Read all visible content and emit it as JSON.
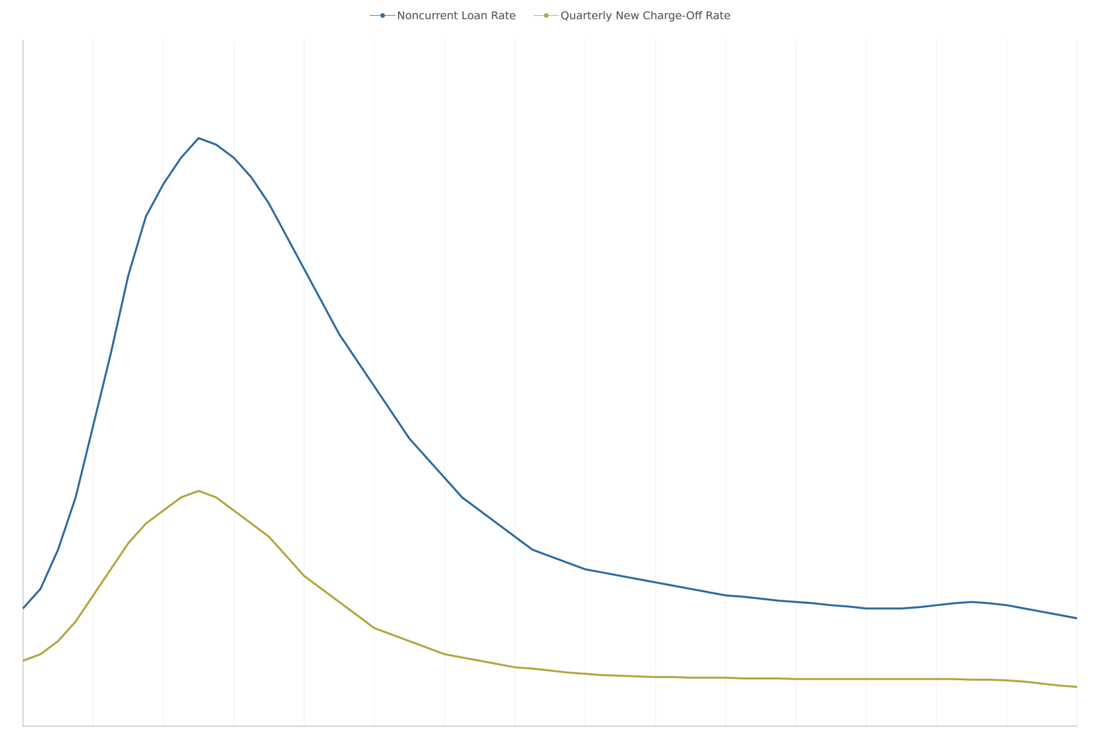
{
  "chart_data": {
    "type": "line",
    "categories": [
      null,
      null,
      null,
      null,
      null,
      null,
      null,
      null,
      null,
      null,
      null,
      null,
      null,
      null,
      null,
      null,
      null,
      null,
      null,
      null,
      null,
      null,
      null,
      null,
      null,
      null,
      null,
      null,
      null,
      null,
      null,
      null,
      null,
      null,
      null,
      null,
      null,
      null,
      null,
      null,
      null,
      null,
      null,
      null,
      null,
      null,
      null,
      null,
      null,
      null,
      null,
      null,
      null,
      null,
      null,
      null,
      null,
      null,
      null,
      null,
      null
    ],
    "series": [
      {
        "name": "Noncurrent Loan Rate",
        "color": "#2e6da4",
        "values": [
          2.3,
          2.6,
          3.2,
          4.0,
          5.1,
          6.2,
          7.4,
          8.3,
          8.8,
          9.2,
          9.5,
          9.4,
          9.2,
          8.9,
          8.5,
          8.0,
          7.5,
          7.0,
          6.5,
          6.1,
          5.7,
          5.3,
          4.9,
          4.6,
          4.3,
          4.0,
          3.8,
          3.6,
          3.4,
          3.2,
          3.1,
          3.0,
          2.9,
          2.85,
          2.8,
          2.75,
          2.7,
          2.65,
          2.6,
          2.55,
          2.5,
          2.48,
          2.45,
          2.42,
          2.4,
          2.38,
          2.35,
          2.33,
          2.3,
          2.3,
          2.3,
          2.32,
          2.35,
          2.38,
          2.4,
          2.38,
          2.35,
          2.3,
          2.25,
          2.2,
          2.15
        ]
      },
      {
        "name": "Quarterly New Charge-Off Rate",
        "color": "#b5a642",
        "values": [
          1.5,
          1.6,
          1.8,
          2.1,
          2.5,
          2.9,
          3.3,
          3.6,
          3.8,
          4.0,
          4.1,
          4.0,
          3.8,
          3.6,
          3.4,
          3.1,
          2.8,
          2.6,
          2.4,
          2.2,
          2.0,
          1.9,
          1.8,
          1.7,
          1.6,
          1.55,
          1.5,
          1.45,
          1.4,
          1.38,
          1.35,
          1.32,
          1.3,
          1.28,
          1.27,
          1.26,
          1.25,
          1.25,
          1.24,
          1.24,
          1.24,
          1.23,
          1.23,
          1.23,
          1.22,
          1.22,
          1.22,
          1.22,
          1.22,
          1.22,
          1.22,
          1.22,
          1.22,
          1.22,
          1.21,
          1.21,
          1.2,
          1.18,
          1.15,
          1.12,
          1.1
        ]
      }
    ],
    "ylim": [
      0.5,
      11.0
    ],
    "grid": true,
    "legend": "top",
    "tick_labels": false
  }
}
